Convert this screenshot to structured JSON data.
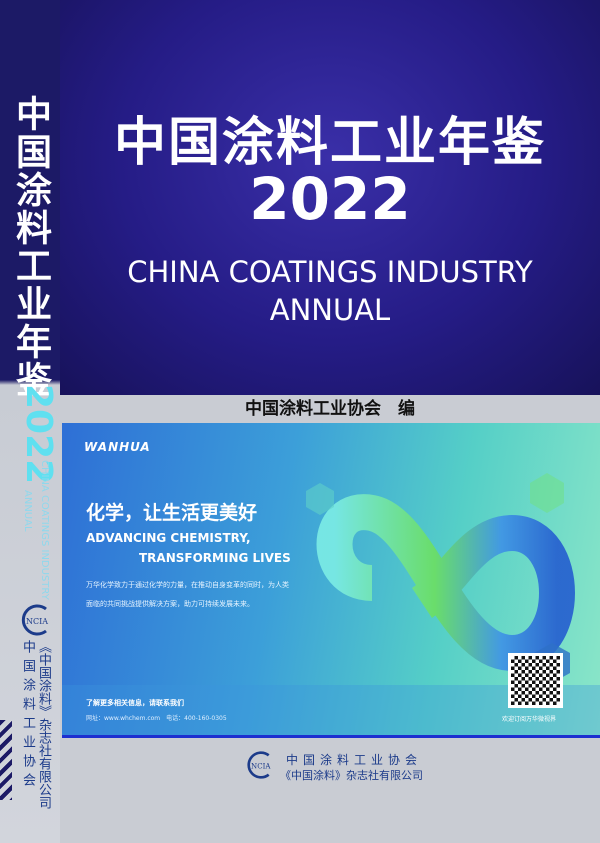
{
  "spine": {
    "title": "中国涂料工业年鉴",
    "year": "2022",
    "english_line1": "CHINA COATINGS INDUSTRY",
    "english_line2": "ANNUAL",
    "logo_text": "NCIA",
    "publisher1": "《中国涂料》杂志社有限公司",
    "publisher2": "中国涂料工业协会"
  },
  "cover": {
    "title_cn": "中国涂料工业年鉴",
    "year": "2022",
    "title_en_line1": "CHINA COATINGS INDUSTRY",
    "title_en_line2": "ANNUAL",
    "editor": "中国涂料工业协会　编"
  },
  "ad": {
    "brand": "WANHUA",
    "slogan_cn": "化学，让生活更美好",
    "slogan_en_line1": "ADVANCING CHEMISTRY,",
    "slogan_en_line2": "TRANSFORMING LIVES",
    "body_line1": "万华化学致力于通过化学的力量，在推动自身变革的同时，为人类",
    "body_line2": "面临的共同挑战提供解决方案，助力可持续发展未来。",
    "contact_title": "了解更多相关信息，请联系我们",
    "contact_detail": "网址：www.whchem.com　电话：400-160-0305",
    "qr_caption": "欢迎订阅万华微视界",
    "colors": {
      "start": "#2e6fd6",
      "end": "#8be6c8"
    }
  },
  "publisher": {
    "logo_text": "NCIA",
    "line1": "中国涂料工业协会",
    "line2": "《中国涂料》杂志社有限公司"
  }
}
